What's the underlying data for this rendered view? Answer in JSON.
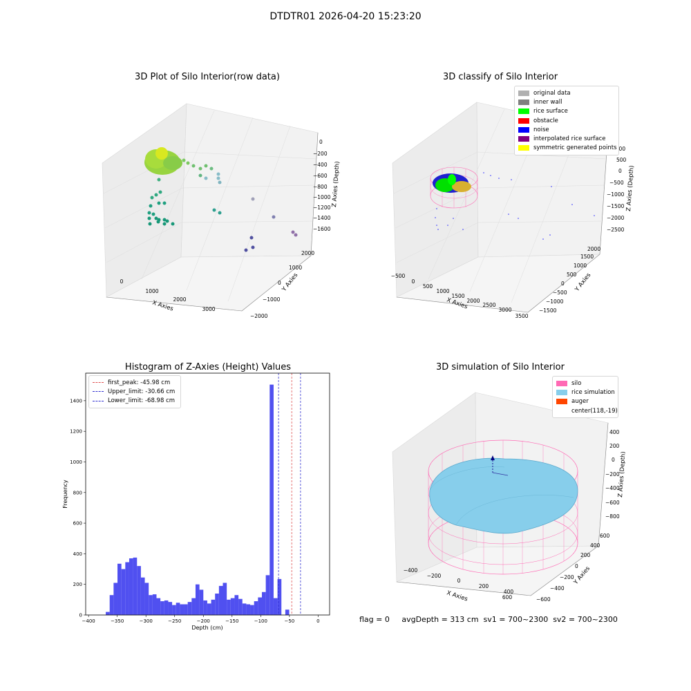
{
  "header": {
    "title": "DTDTR01 2026-04-20 15:23:20"
  },
  "colors": {
    "hist_bar": "#5050f0",
    "peak_line": "#e05050",
    "limit_line": "#3030d0",
    "silo": "#ff69b4",
    "rice_simulation": "#87ceeb",
    "auger": "#ff4500",
    "raw_green": "#90d040",
    "raw_teal": "#20a080",
    "noise": "#0000ff",
    "rice_surface": "#00ff00",
    "symmetric": "#ffff00"
  },
  "panels": {
    "raw": {
      "title": "3D Plot of Silo Interior(row data)",
      "xlabel": "X Axies",
      "ylabel": "Y Axies",
      "zlabel": "Z Axies (Depth)",
      "xticks": [
        "0",
        "1000",
        "2000",
        "3000"
      ],
      "yticks": [
        "−2000",
        "−1000",
        "0",
        "1000",
        "2000"
      ],
      "zticks": [
        "0",
        "−200",
        "−400",
        "−600",
        "−800",
        "−1000",
        "−1200",
        "−1400",
        "−1600"
      ]
    },
    "classify": {
      "title": "3D classify of Silo Interior",
      "xlabel": "X Axies",
      "ylabel": "Y Axies",
      "zlabel": "Z Axies (Depth)",
      "xticks": [
        "−500",
        "0",
        "500",
        "1000",
        "1500",
        "2000",
        "2500",
        "3000",
        "3500"
      ],
      "yticks": [
        "−1500",
        "−1000",
        "−500",
        "0",
        "500",
        "1000",
        "1500",
        "2000"
      ],
      "zticks": [
        "1000",
        "500",
        "0",
        "−500",
        "−1000",
        "−1500",
        "−2000",
        "−2500"
      ],
      "legend": [
        {
          "label": "original data",
          "color": "#b0b0b0"
        },
        {
          "label": "inner wall",
          "color": "#808080"
        },
        {
          "label": "rice surface",
          "color": "#00ff00"
        },
        {
          "label": "obstacle",
          "color": "#ff0000"
        },
        {
          "label": "noise",
          "color": "#0000ff"
        },
        {
          "label": "interpolated rice surface",
          "color": "#800080"
        },
        {
          "label": "symmetric generated points",
          "color": "#ffff00"
        }
      ]
    },
    "histogram": {
      "title": "Histogram of Z-Axies (Height) Values",
      "legend": [
        {
          "label": "first_peak: -45.98 cm",
          "color": "#e05050"
        },
        {
          "label": "Upper_limit: -30.66 cm",
          "color": "#3030d0"
        },
        {
          "label": "Lower_limit: -68.98 cm",
          "color": "#3030d0"
        }
      ]
    },
    "simulation": {
      "title": "3D simulation of Silo Interior",
      "xlabel": "X Axies",
      "ylabel": "Y Axies",
      "zlabel": "Z Axies (Depth)",
      "xticks": [
        "−400",
        "−200",
        "0",
        "200",
        "400",
        "600"
      ],
      "yticks": [
        "−600",
        "−400",
        "−200",
        "0",
        "200",
        "400",
        "600"
      ],
      "zticks": [
        "400",
        "200",
        "0",
        "−200",
        "−400",
        "−600",
        "−800"
      ],
      "legend": [
        {
          "label": "silo",
          "color": "#ff69b4"
        },
        {
          "label": "rice simulation",
          "color": "#87ceeb"
        },
        {
          "label": "auger",
          "color": "#ff4500"
        },
        {
          "label": "center(118,-19)",
          "color": ""
        }
      ]
    }
  },
  "footer": {
    "text": "flag = 0     avgDepth = 313 cm  sv1 = 700~2300  sv2 = 700~2300"
  },
  "chart_data": [
    {
      "type": "scatter",
      "title": "3D Plot of Silo Interior(row data)",
      "xlabel": "X Axies",
      "ylabel": "Y Axies",
      "zlabel": "Z Axies (Depth)",
      "xlim": [
        -500,
        3500
      ],
      "ylim": [
        -2000,
        2000
      ],
      "zlim": [
        -1700,
        0
      ]
    },
    {
      "type": "scatter",
      "title": "3D classify of Silo Interior",
      "xlabel": "X Axies",
      "ylabel": "Y Axies",
      "zlabel": "Z Axies (Depth)",
      "xlim": [
        -500,
        3500
      ],
      "ylim": [
        -1500,
        2000
      ],
      "zlim": [
        -2500,
        1000
      ],
      "series": [
        {
          "name": "original data"
        },
        {
          "name": "inner wall"
        },
        {
          "name": "rice surface"
        },
        {
          "name": "obstacle"
        },
        {
          "name": "noise"
        },
        {
          "name": "interpolated rice surface"
        },
        {
          "name": "symmetric generated points"
        }
      ]
    },
    {
      "type": "bar",
      "title": "Histogram of Z-Axies (Height) Values",
      "xlabel": "Depth (cm)",
      "ylabel": "Frequency",
      "xlim": [
        -405,
        20
      ],
      "ylim": [
        0,
        1580
      ],
      "xticks": [
        -400,
        -350,
        -300,
        -250,
        -200,
        -150,
        -100,
        -50,
        0
      ],
      "yticks": [
        0,
        200,
        400,
        600,
        800,
        1000,
        1200,
        1400
      ],
      "bin_width": 6.8,
      "bin_start": [
        -370,
        -363.2,
        -356.4,
        -349.6,
        -342.8,
        -336,
        -329.2,
        -322.4,
        -315.6,
        -308.8,
        -302,
        -295.2,
        -288.4,
        -281.6,
        -274.8,
        -268,
        -261.2,
        -254.4,
        -247.6,
        -240.8,
        -234,
        -227.2,
        -220.4,
        -213.6,
        -206.8,
        -200,
        -193.2,
        -186.4,
        -179.6,
        -172.8,
        -166,
        -159.2,
        -152.4,
        -145.6,
        -138.8,
        -132,
        -125.2,
        -118.4,
        -111.6,
        -104.8,
        -98,
        -91.2,
        -84.4,
        -77.6,
        -70.8,
        -64,
        -57.2,
        -50.4,
        -43.6,
        -36.8,
        -30,
        -23.2,
        -16.4,
        -9.6,
        -2.8
      ],
      "values": [
        20,
        130,
        210,
        335,
        300,
        345,
        370,
        375,
        320,
        245,
        210,
        130,
        135,
        110,
        90,
        95,
        85,
        65,
        80,
        70,
        70,
        85,
        110,
        200,
        165,
        95,
        75,
        100,
        140,
        190,
        210,
        100,
        110,
        130,
        105,
        75,
        70,
        65,
        90,
        115,
        150,
        260,
        1505,
        110,
        235,
        0,
        35,
        0,
        0,
        0,
        0,
        0,
        0,
        0,
        0
      ],
      "series": [
        {
          "name": "first_peak: -45.98 cm",
          "x": -45.98
        },
        {
          "name": "Upper_limit: -30.66 cm",
          "x": -30.66
        },
        {
          "name": "Lower_limit: -68.98 cm",
          "x": -68.98
        }
      ]
    },
    {
      "type": "scatter",
      "title": "3D simulation of Silo Interior",
      "xlabel": "X Axies",
      "ylabel": "Y Axies",
      "zlabel": "Z Axies (Depth)",
      "xlim": [
        -500,
        700
      ],
      "ylim": [
        -700,
        700
      ],
      "zlim": [
        -900,
        500
      ],
      "series": [
        {
          "name": "silo"
        },
        {
          "name": "rice simulation"
        },
        {
          "name": "auger"
        },
        {
          "name": "center(118,-19)"
        }
      ]
    }
  ]
}
